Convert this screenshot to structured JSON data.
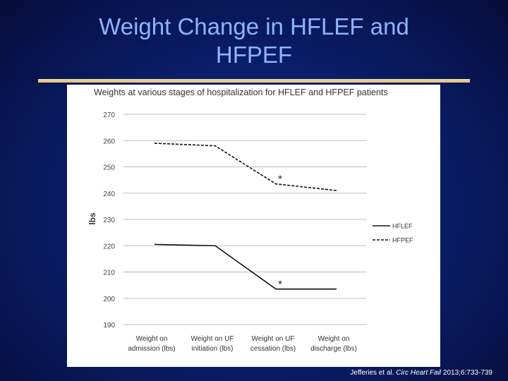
{
  "slide": {
    "title_line1": "Weight Change in HFLEF and",
    "title_line2": "HFPEF",
    "citation_authors": "Jefferies et al. ",
    "citation_journal": "Circ Heart Fail",
    "citation_details": " 2013;6:733-739",
    "colors": {
      "title": "#8fb4ff",
      "rule": "#e8c98a",
      "background": "#0b1f6e"
    }
  },
  "chart_data": {
    "type": "line",
    "title": "Weights at various stages of hospitalization for HFLEF and HFPEF patients",
    "ylabel": "lbs",
    "xlabel": "",
    "categories": [
      [
        "Weight on",
        "admission (lbs)"
      ],
      [
        "Weight on UF",
        "initiation (lbs)"
      ],
      [
        "Weight on UF",
        "cessation (lbs)"
      ],
      [
        "Weight on",
        "discharge (lbs)"
      ]
    ],
    "y_ticks": [
      "270",
      "260",
      "250",
      "240",
      "230",
      "220",
      "210",
      "200",
      "190"
    ],
    "ylim": [
      190,
      270
    ],
    "grid": true,
    "legend_position": "right",
    "series": [
      {
        "name": "HFLEF",
        "values": [
          220.5,
          220,
          203.5,
          203.5
        ],
        "style": "solid",
        "color": "#111111"
      },
      {
        "name": "HFPEF",
        "values": [
          259,
          258,
          243.5,
          241
        ],
        "style": "dashed",
        "color": "#111111"
      }
    ],
    "annotations": [
      {
        "text": "*",
        "category_index": 2,
        "series": "HFPEF"
      },
      {
        "text": "*",
        "category_index": 2,
        "series": "HFLEF"
      }
    ]
  }
}
